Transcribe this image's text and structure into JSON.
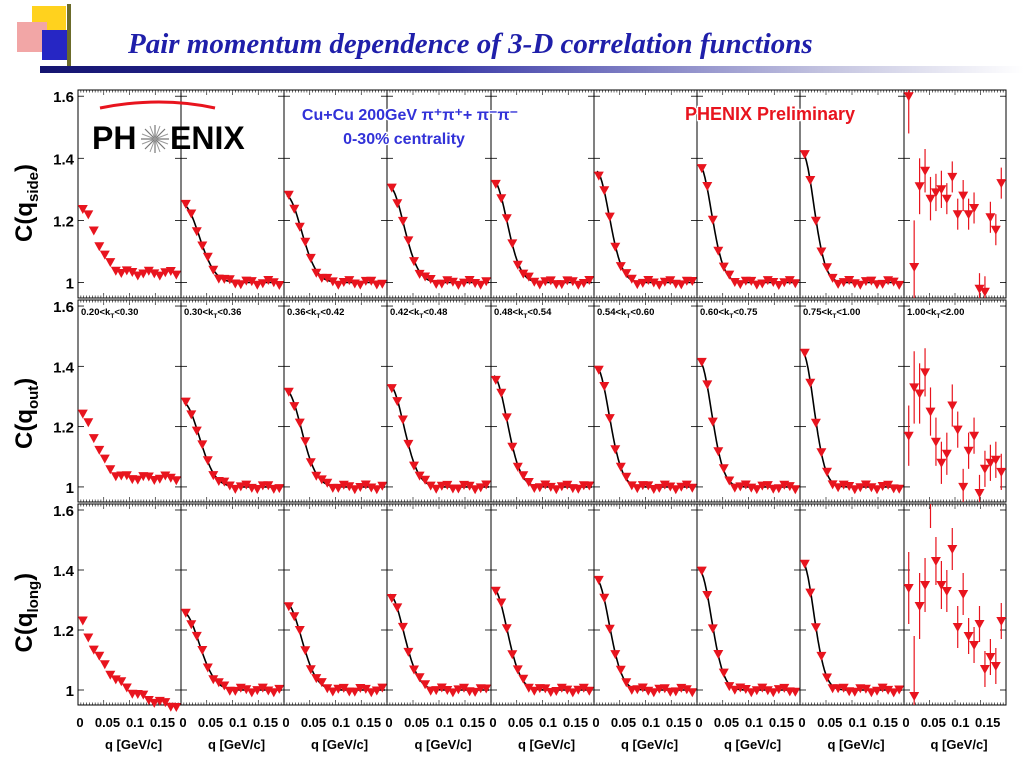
{
  "slide": {
    "title": "Pair momentum dependence of 3-D correlation functions"
  },
  "logo": {
    "left": "PH",
    "right": "ENIX"
  },
  "annotations": {
    "system_line1": "Cu+Cu 200GeV  π⁺π⁺+ π⁻π⁻",
    "system_line2": "0-30% centrality",
    "preliminary": "PHENIX Preliminary"
  },
  "colors": {
    "data": "#e8141e",
    "fit": "#000000",
    "title": "#1f1faa",
    "system": "#3232d8"
  },
  "chart_data": {
    "type": "scatter",
    "layout": "grid 3 rows x 9 columns",
    "rows": [
      {
        "key": "side",
        "ylabel_main": "C(q",
        "ylabel_sub": "side",
        "ylabel_close": ")"
      },
      {
        "key": "out",
        "ylabel_main": "C(q",
        "ylabel_sub": "out",
        "ylabel_close": ")"
      },
      {
        "key": "long",
        "ylabel_main": "C(q",
        "ylabel_sub": "long",
        "ylabel_close": ")"
      }
    ],
    "ylim": [
      0.95,
      1.62
    ],
    "yticks": [
      1,
      1.2,
      1.4,
      1.6
    ],
    "ytick_labels": [
      "1",
      "1.2",
      "1.4",
      "1.6"
    ],
    "xlim": [
      0,
      0.18
    ],
    "xticks": [
      0,
      0.05,
      0.1,
      0.15
    ],
    "xtick_labels": [
      "0",
      "0.05",
      "0.1",
      "0.15"
    ],
    "xlabel": "q [GeV/c]",
    "kt_bins": [
      {
        "lo": "0.20",
        "hi": "0.30"
      },
      {
        "lo": "0.30",
        "hi": "0.36"
      },
      {
        "lo": "0.36",
        "hi": "0.42"
      },
      {
        "lo": "0.42",
        "hi": "0.48"
      },
      {
        "lo": "0.48",
        "hi": "0.54"
      },
      {
        "lo": "0.54",
        "hi": "0.60"
      },
      {
        "lo": "0.60",
        "hi": "0.75"
      },
      {
        "lo": "0.75",
        "hi": "1.00"
      },
      {
        "lo": "1.00",
        "hi": "2.00"
      }
    ],
    "kt_label_prefix": "<k",
    "kt_label_sub": "T",
    "amplitude": {
      "side": [
        0.24,
        0.25,
        0.28,
        0.31,
        0.33,
        0.36,
        0.38,
        0.42,
        0.3
      ],
      "out": [
        0.24,
        0.28,
        0.32,
        0.34,
        0.37,
        0.4,
        0.42,
        0.45,
        0.3
      ],
      "long": [
        0.24,
        0.26,
        0.29,
        0.32,
        0.34,
        0.37,
        0.4,
        0.43,
        0.3
      ]
    },
    "fit_shown": [
      false,
      true,
      true,
      true,
      true,
      true,
      true,
      true,
      false
    ],
    "last_bin_points": {
      "side": {
        "q": [
          0.005,
          0.015,
          0.025,
          0.035,
          0.045,
          0.055,
          0.065,
          0.075,
          0.085,
          0.095,
          0.105,
          0.115,
          0.125,
          0.135,
          0.145,
          0.155,
          0.165,
          0.175
        ],
        "c": [
          1.6,
          1.05,
          1.31,
          1.36,
          1.27,
          1.29,
          1.3,
          1.27,
          1.34,
          1.22,
          1.28,
          1.22,
          1.24,
          0.98,
          0.97,
          1.21,
          1.17,
          1.32
        ],
        "err": [
          0.12,
          0.15,
          0.09,
          0.07,
          0.07,
          0.06,
          0.06,
          0.05,
          0.05,
          0.05,
          0.05,
          0.05,
          0.05,
          0.05,
          0.05,
          0.05,
          0.05,
          0.05
        ]
      },
      "out": {
        "q": [
          0.005,
          0.015,
          0.025,
          0.035,
          0.045,
          0.055,
          0.065,
          0.075,
          0.085,
          0.095,
          0.105,
          0.115,
          0.125,
          0.135,
          0.145,
          0.155,
          0.165,
          0.175
        ],
        "c": [
          1.17,
          1.33,
          1.31,
          1.38,
          1.25,
          1.15,
          1.08,
          1.11,
          1.27,
          1.19,
          1.0,
          1.12,
          1.17,
          0.98,
          1.06,
          1.08,
          1.09,
          1.05
        ],
        "err": [
          0.1,
          0.12,
          0.1,
          0.08,
          0.08,
          0.08,
          0.07,
          0.07,
          0.07,
          0.06,
          0.06,
          0.06,
          0.06,
          0.06,
          0.06,
          0.06,
          0.06,
          0.06
        ]
      },
      "long": {
        "q": [
          0.005,
          0.015,
          0.025,
          0.035,
          0.045,
          0.055,
          0.065,
          0.075,
          0.085,
          0.095,
          0.105,
          0.115,
          0.125,
          0.135,
          0.145,
          0.155,
          0.165,
          0.175
        ],
        "c": [
          1.34,
          0.98,
          1.28,
          1.35,
          1.63,
          1.43,
          1.35,
          1.33,
          1.47,
          1.21,
          1.32,
          1.18,
          1.15,
          1.22,
          1.07,
          1.11,
          1.08,
          1.23
        ],
        "err": [
          0.12,
          0.2,
          0.11,
          0.09,
          0.09,
          0.08,
          0.08,
          0.07,
          0.07,
          0.07,
          0.07,
          0.06,
          0.06,
          0.06,
          0.06,
          0.06,
          0.06,
          0.06
        ]
      }
    }
  }
}
